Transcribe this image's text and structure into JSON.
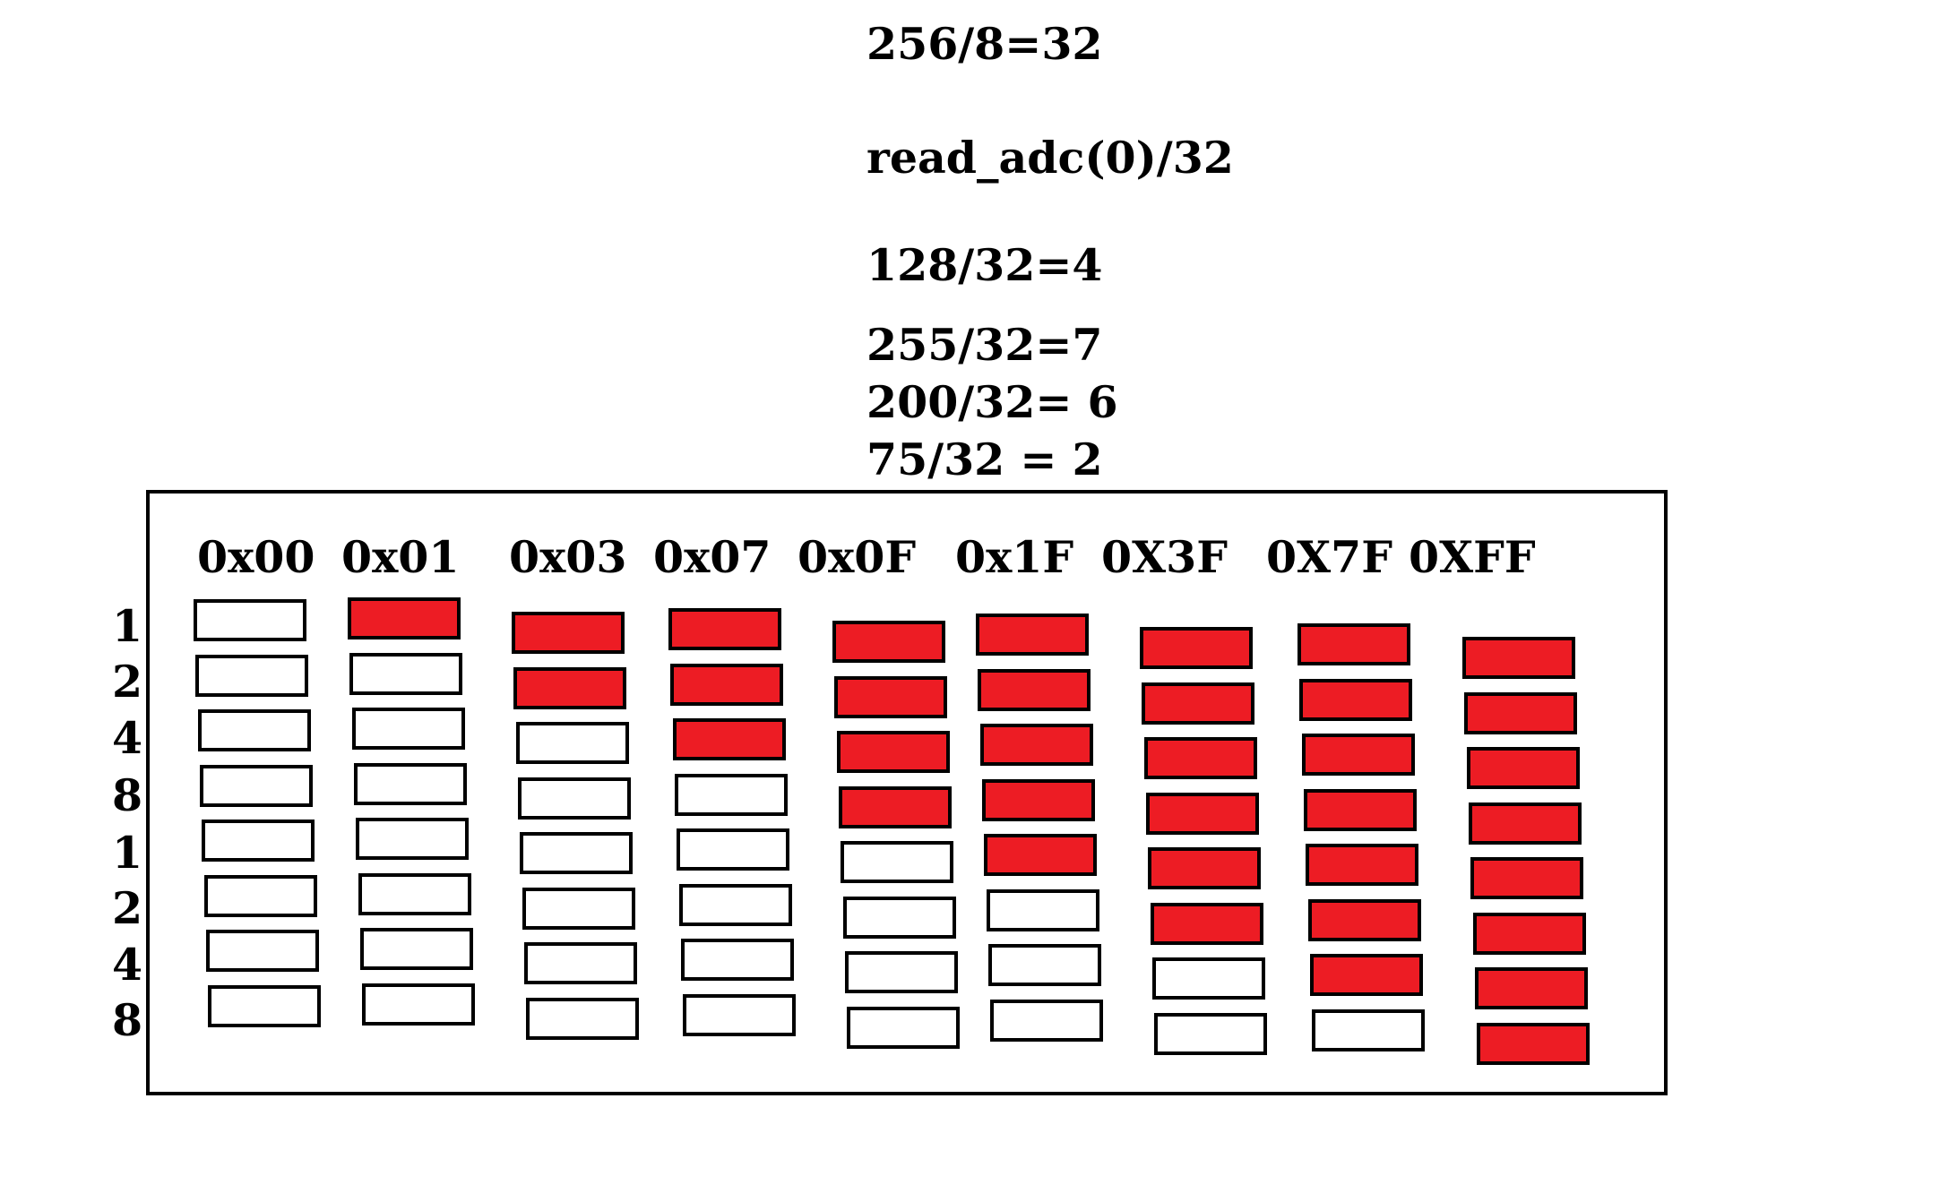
{
  "equations": [
    "256/8=32",
    "read_adc(0)/32",
    "128/32=4",
    "255/32=7",
    "200/32= 6",
    "75/32 = 2"
  ],
  "row_labels": [
    "1",
    "2",
    "4",
    "8",
    "1",
    "2",
    "4",
    "8"
  ],
  "columns": [
    {
      "label": "0x00",
      "lit": 0
    },
    {
      "label": "0x01",
      "lit": 1
    },
    {
      "label": "0x03",
      "lit": 2
    },
    {
      "label": "0x07",
      "lit": 3
    },
    {
      "label": "0x0F",
      "lit": 4
    },
    {
      "label": "0x1F",
      "lit": 5
    },
    {
      "label": "0X3F",
      "lit": 6
    },
    {
      "label": "0X7F",
      "lit": 7
    },
    {
      "label": "0XFF",
      "lit": 8
    }
  ],
  "colors": {
    "on": "#ed1c24",
    "off": "#ffffff",
    "border": "#000000"
  }
}
